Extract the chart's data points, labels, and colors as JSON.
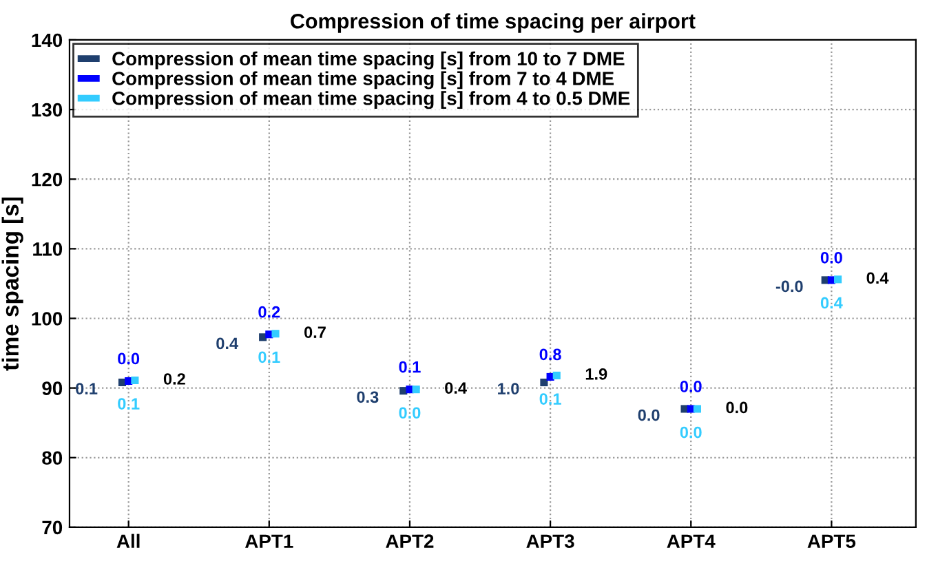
{
  "chart_data": {
    "type": "scatter",
    "title": "Compression of time spacing per airport",
    "ylabel": "time spacing [s]",
    "categories": [
      "All",
      "APT1",
      "APT2",
      "APT3",
      "APT4",
      "APT5"
    ],
    "series": [
      {
        "name": "Compression of mean time spacing [s] from 10 to 7 DME",
        "color": "#1f3f6e",
        "values": [
          90.8,
          97.3,
          89.6,
          90.8,
          87.0,
          105.5
        ]
      },
      {
        "name": "Compression of mean time spacing [s] from 7 to 4 DME",
        "color": "#0000ff",
        "values": [
          91.0,
          97.7,
          89.8,
          91.6,
          87.0,
          105.5
        ]
      },
      {
        "name": "Compression of mean time spacing [s] from 4 to 0.5 DME",
        "color": "#33ccff",
        "values": [
          91.1,
          97.8,
          89.8,
          91.8,
          87.0,
          105.6
        ]
      }
    ],
    "annotations": [
      "0.1",
      "0.0",
      "0.1",
      "0.2",
      "0.4",
      "0.2",
      "0.1",
      "0.7",
      "0.3",
      "0.1",
      "0.0",
      "0.4",
      "1.0",
      "0.8",
      "0.1",
      "1.9",
      "0.0",
      "0.0",
      "0.0",
      "0.0",
      "-0.0",
      "0.0",
      "0.4",
      "0.4"
    ],
    "ylim": [
      70,
      140
    ],
    "yticks": [
      70,
      80,
      90,
      100,
      110,
      120,
      130,
      140
    ],
    "grid": true,
    "legend": "top left"
  }
}
